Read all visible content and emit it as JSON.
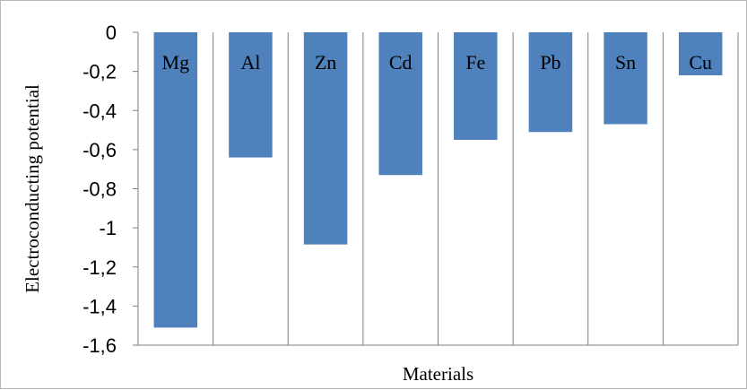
{
  "chart_data": {
    "type": "bar",
    "categories": [
      "Mg",
      "Al",
      "Zn",
      "Cd",
      "Fe",
      "Pb",
      "Sn",
      "Cu"
    ],
    "values": [
      -1.51,
      -0.64,
      -1.085,
      -0.73,
      -0.55,
      -0.51,
      -0.47,
      -0.22
    ],
    "xlabel": "Materials",
    "ylabel": "Electroconducting potential",
    "ylim": [
      -1.6,
      0
    ],
    "y_ticks": [
      "0",
      "-0,2",
      "-0,4",
      "-0,6",
      "-0,8",
      "-1",
      "-1,2",
      "-1,4",
      "-1,6"
    ],
    "grid": true,
    "grid_style": "vertical lines between categories",
    "legend": "none",
    "category_label_position": "inside bars near top",
    "colors": {
      "bar": "#4f81bd",
      "grid": "#7f7f7f",
      "axis": "#7f7f7f",
      "frame": "#b8b8b8",
      "text": "#000000"
    }
  }
}
